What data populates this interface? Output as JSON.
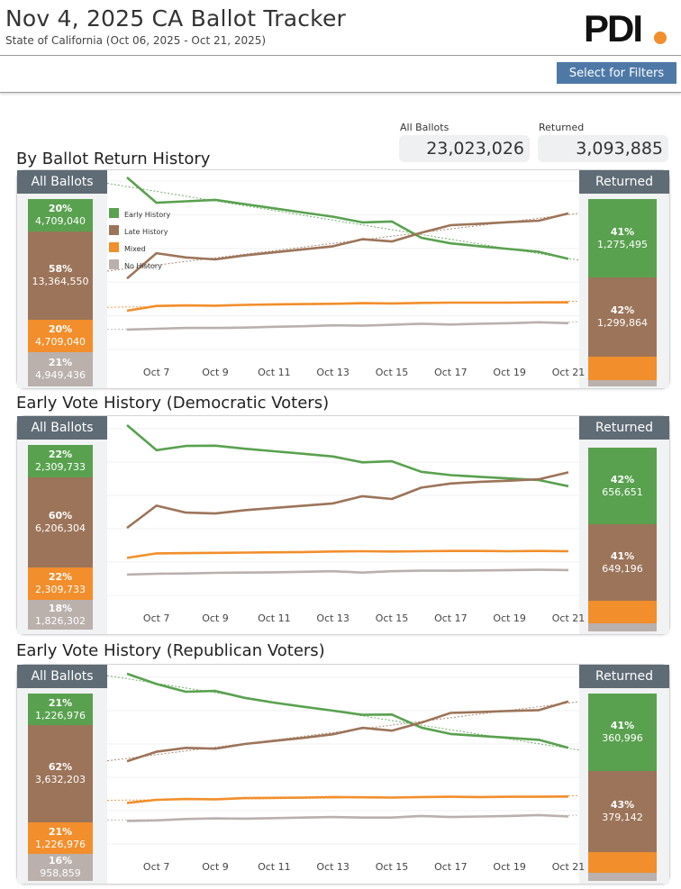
{
  "header": {
    "title": "Nov 4, 2025 CA Ballot Tracker",
    "subtitle": "State of California (Oct 06, 2025 - Oct 21, 2025)",
    "logo_text": "PDI",
    "filter_button": "Select for Filters"
  },
  "kpis": {
    "all_label": "All Ballots",
    "all_value": "23,023,026",
    "returned_label": "Returned",
    "returned_value": "3,093,885"
  },
  "colors": {
    "early": "#59a14f",
    "late": "#9c7459",
    "mixed": "#f28e2b",
    "none": "#bab0ac",
    "header_bar": "#5f6b75",
    "button": "#4e79a7"
  },
  "chart_data": [
    {
      "type": "line",
      "title": "By Ballot Return History",
      "x": [
        "Oct 6",
        "Oct 7",
        "Oct 8",
        "Oct 9",
        "Oct 10",
        "Oct 11",
        "Oct 12",
        "Oct 13",
        "Oct 14",
        "Oct 15",
        "Oct 16",
        "Oct 17",
        "Oct 18",
        "Oct 19",
        "Oct 20",
        "Oct 21"
      ],
      "xticks": [
        "Oct 7",
        "Oct 9",
        "Oct 11",
        "Oct 13",
        "Oct 15",
        "Oct 17",
        "Oct 19",
        "Oct 21"
      ],
      "ylim": [
        0,
        60
      ],
      "legend": [
        "Early History",
        "Late History",
        "Mixed",
        "No History"
      ],
      "left_label": "All Ballots",
      "right_label": "Returned",
      "trendlines": true,
      "series": [
        {
          "name": "Early History",
          "values": [
            60,
            51,
            51.5,
            52,
            50.5,
            49,
            47.5,
            46,
            44,
            44.3,
            38.5,
            36.5,
            35.5,
            34.5,
            33.5,
            31
          ]
        },
        {
          "name": "Late History",
          "values": [
            24,
            33,
            31.5,
            30.8,
            32.2,
            33.3,
            34.4,
            35.5,
            38,
            37.2,
            40.3,
            43,
            43.5,
            44.1,
            44.6,
            47.2
          ]
        },
        {
          "name": "Mixed",
          "values": [
            12.5,
            14.2,
            14.4,
            14.3,
            14.6,
            14.8,
            14.9,
            15,
            15.2,
            15.1,
            15.3,
            15.4,
            15.4,
            15.4,
            15.5,
            15.5
          ]
        },
        {
          "name": "No History",
          "values": [
            5.8,
            6.1,
            6.4,
            6.4,
            6.5,
            6.8,
            7,
            7.3,
            7.2,
            7.5,
            7.9,
            7.6,
            7.9,
            8.1,
            8.4,
            8.1
          ]
        }
      ],
      "all_ballots": [
        {
          "name": "Early History",
          "pct": "20%",
          "count": "4,709,040"
        },
        {
          "name": "Late History",
          "pct": "58%",
          "count": "13,364,550"
        },
        {
          "name": "Mixed",
          "pct": "20%",
          "count": "4,709,040"
        },
        {
          "name": "No History",
          "pct": "21%",
          "count": "4,949,436"
        }
      ],
      "returned": [
        {
          "name": "Early History",
          "pct": "41%",
          "count": "1,275,495"
        },
        {
          "name": "Late History",
          "pct": "42%",
          "count": "1,299,864"
        },
        {
          "name": "Mixed",
          "pct": "",
          "count": ""
        },
        {
          "name": "No History",
          "pct": "",
          "count": ""
        }
      ]
    },
    {
      "type": "line",
      "title": "Early Vote History (Democratic Voters)",
      "x": [
        "Oct 6",
        "Oct 7",
        "Oct 8",
        "Oct 9",
        "Oct 10",
        "Oct 11",
        "Oct 12",
        "Oct 13",
        "Oct 14",
        "Oct 15",
        "Oct 16",
        "Oct 17",
        "Oct 18",
        "Oct 19",
        "Oct 20",
        "Oct 21"
      ],
      "xticks": [
        "Oct 7",
        "Oct 9",
        "Oct 11",
        "Oct 13",
        "Oct 15",
        "Oct 17",
        "Oct 19",
        "Oct 21"
      ],
      "ylim": [
        0,
        60
      ],
      "left_label": "All Ballots",
      "right_label": "Returned",
      "trendlines": false,
      "series": [
        {
          "name": "Early History",
          "values": [
            60,
            51,
            52.5,
            52.6,
            51.5,
            50.6,
            49.7,
            48.7,
            46.6,
            47,
            43.2,
            42,
            41.4,
            40.8,
            40.2,
            38
          ]
        },
        {
          "name": "Late History",
          "values": [
            23,
            31,
            28.5,
            28.2,
            29.4,
            30.2,
            31,
            31.8,
            34.4,
            33.4,
            37.5,
            39,
            39.6,
            40,
            40.5,
            43
          ]
        },
        {
          "name": "Mixed",
          "values": [
            12.2,
            13.8,
            13.9,
            14,
            14.1,
            14.2,
            14.3,
            14.5,
            14.6,
            14.5,
            14.6,
            14.7,
            14.7,
            14.6,
            14.7,
            14.6
          ]
        },
        {
          "name": "No History",
          "values": [
            6.2,
            6.5,
            6.6,
            6.8,
            6.9,
            7,
            7.2,
            7.4,
            6.9,
            7.4,
            7.6,
            7.6,
            7.7,
            7.8,
            7.9,
            7.8
          ]
        }
      ],
      "all_ballots": [
        {
          "name": "Early History",
          "pct": "22%",
          "count": "2,309,733"
        },
        {
          "name": "Late History",
          "pct": "60%",
          "count": "6,206,304"
        },
        {
          "name": "Mixed",
          "pct": "22%",
          "count": "2,309,733"
        },
        {
          "name": "No History",
          "pct": "18%",
          "count": "1,826,302"
        }
      ],
      "returned": [
        {
          "name": "Early History",
          "pct": "42%",
          "count": "656,651"
        },
        {
          "name": "Late History",
          "pct": "41%",
          "count": "649,196"
        },
        {
          "name": "Mixed",
          "pct": "",
          "count": ""
        },
        {
          "name": "No History",
          "pct": "",
          "count": ""
        }
      ]
    },
    {
      "type": "line",
      "title": "Early Vote History (Republican Voters)",
      "x": [
        "Oct 6",
        "Oct 7",
        "Oct 8",
        "Oct 9",
        "Oct 10",
        "Oct 11",
        "Oct 12",
        "Oct 13",
        "Oct 14",
        "Oct 15",
        "Oct 16",
        "Oct 17",
        "Oct 18",
        "Oct 19",
        "Oct 20",
        "Oct 21"
      ],
      "xticks": [
        "Oct 7",
        "Oct 9",
        "Oct 11",
        "Oct 13",
        "Oct 15",
        "Oct 17",
        "Oct 19",
        "Oct 21"
      ],
      "ylim": [
        0,
        60
      ],
      "left_label": "All Ballots",
      "right_label": "Returned",
      "trendlines": true,
      "series": [
        {
          "name": "Early History",
          "values": [
            60,
            56.3,
            53.5,
            53.8,
            51.3,
            49.6,
            48.1,
            46.7,
            45.2,
            45.3,
            40.6,
            38.3,
            37.6,
            36.9,
            36.2,
            33.3
          ]
        },
        {
          "name": "Late History",
          "values": [
            28.5,
            31.9,
            33.3,
            33,
            34.7,
            35.8,
            36.9,
            38.2,
            40.5,
            39.5,
            42.4,
            45.9,
            46.2,
            46.6,
            46.9,
            50
          ]
        },
        {
          "name": "Mixed",
          "values": [
            13.5,
            14.6,
            14.9,
            14.8,
            15.2,
            15.3,
            15.4,
            15.6,
            15.5,
            15.4,
            15.6,
            15.7,
            15.6,
            15.7,
            15.7,
            15.8
          ]
        },
        {
          "name": "No History",
          "values": [
            7,
            7.2,
            7.7,
            7.9,
            7.8,
            8,
            8.2,
            8.4,
            8.2,
            8.2,
            8.8,
            8.4,
            8.6,
            8.8,
            9.1,
            8.6
          ]
        }
      ],
      "all_ballots": [
        {
          "name": "Early History",
          "pct": "21%",
          "count": "1,226,976"
        },
        {
          "name": "Late History",
          "pct": "62%",
          "count": "3,632,203"
        },
        {
          "name": "Mixed",
          "pct": "21%",
          "count": "1,226,976"
        },
        {
          "name": "No History",
          "pct": "16%",
          "count": "958,859"
        }
      ],
      "returned": [
        {
          "name": "Early History",
          "pct": "41%",
          "count": "360,996"
        },
        {
          "name": "Late History",
          "pct": "43%",
          "count": "379,142"
        },
        {
          "name": "Mixed",
          "pct": "",
          "count": ""
        },
        {
          "name": "No History",
          "pct": "",
          "count": ""
        }
      ]
    }
  ]
}
